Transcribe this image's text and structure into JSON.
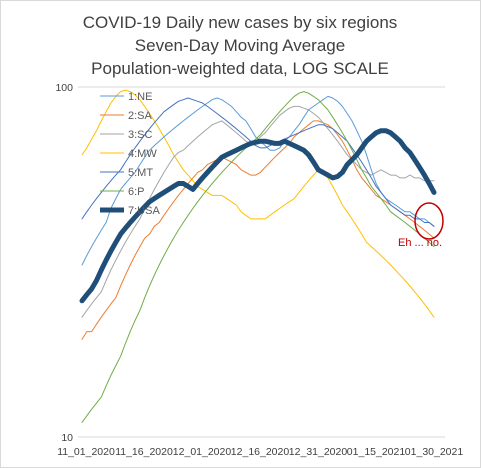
{
  "chart_data": {
    "type": "line",
    "title_lines": [
      "COVID-19 Daily new cases by six regions",
      "Seven-Day Moving Average",
      "Population-weighted data, LOG SCALE"
    ],
    "y_scale": "log",
    "ylim": [
      10,
      100
    ],
    "y_ticks": [
      "100",
      "10"
    ],
    "x_ticks": [
      "11_01_2020",
      "11_16_2020",
      "12_01_2020",
      "12_16_2020",
      "12_31_2020",
      "01_15_2021",
      "01_30_2021"
    ],
    "grid": "horizontal major only",
    "legend_position": "top-left",
    "annotation": "Eh ... no.",
    "series": [
      {
        "name": "1:NE",
        "color": "#5b9bd5",
        "values": [
          31,
          33,
          35,
          37,
          39,
          41,
          45,
          48,
          51,
          53,
          55,
          57,
          60,
          63,
          66,
          68,
          70,
          72,
          74,
          76,
          78,
          80,
          82,
          84,
          86,
          88,
          90,
          92,
          93,
          92,
          90,
          88,
          85,
          82,
          80,
          76,
          72,
          70,
          68,
          66,
          66,
          67,
          70,
          72,
          75,
          78,
          82,
          86,
          88,
          90,
          92,
          94,
          93,
          91,
          88,
          84,
          80,
          75,
          70,
          64,
          58,
          53,
          50,
          48,
          47,
          46,
          45,
          44,
          44,
          43,
          42,
          42,
          41,
          40
        ]
      },
      {
        "name": "2:SA",
        "color": "#ed7d31",
        "values": [
          19,
          20,
          20,
          21,
          22,
          23,
          24,
          25,
          27,
          29,
          31,
          33,
          35,
          37,
          38,
          40,
          41,
          43,
          45,
          47,
          49,
          51,
          53,
          55,
          57,
          58,
          60,
          61,
          62,
          63,
          62,
          61,
          60,
          58,
          57,
          56,
          56,
          57,
          59,
          61,
          63,
          65,
          67,
          69,
          72,
          74,
          76,
          78,
          80,
          80,
          79,
          78,
          76,
          73,
          70,
          66,
          62,
          58,
          55,
          53,
          51,
          49,
          48,
          47,
          46,
          45,
          44,
          43,
          42,
          41,
          40,
          39,
          38,
          37
        ]
      },
      {
        "name": "3:SC",
        "color": "#a5a5a5",
        "values": [
          22,
          23,
          24,
          25,
          26,
          28,
          30,
          32,
          34,
          36,
          38,
          40,
          42,
          45,
          48,
          51,
          54,
          57,
          60,
          63,
          65,
          66,
          68,
          70,
          72,
          74,
          76,
          78,
          79,
          80,
          78,
          76,
          74,
          72,
          70,
          69,
          70,
          72,
          74,
          77,
          80,
          83,
          85,
          87,
          88,
          88,
          87,
          86,
          84,
          82,
          79,
          76,
          73,
          70,
          67,
          64,
          62,
          60,
          58,
          57,
          56,
          57,
          58,
          57,
          56,
          56,
          55,
          55,
          56,
          55,
          55,
          54,
          54,
          54
        ]
      },
      {
        "name": "4:MW",
        "color": "#ffc000",
        "values": [
          64,
          67,
          71,
          75,
          80,
          85,
          90,
          94,
          97,
          98,
          97,
          95,
          92,
          88,
          84,
          80,
          76,
          72,
          68,
          64,
          61,
          58,
          56,
          54,
          52,
          51,
          50,
          49,
          49,
          49,
          48,
          47,
          46,
          44,
          43,
          42,
          42,
          42,
          42,
          43,
          44,
          45,
          46,
          47,
          48,
          50,
          52,
          54,
          56,
          58,
          57,
          55,
          52,
          49,
          46,
          44,
          42,
          40,
          38,
          36,
          35,
          34,
          33,
          32,
          31,
          30,
          29,
          28,
          27,
          26,
          25,
          24,
          23,
          22
        ]
      },
      {
        "name": "5:MT",
        "color": "#4472c4",
        "values": [
          42,
          44,
          46,
          48,
          50,
          52,
          54,
          56,
          58,
          61,
          64,
          67,
          70,
          73,
          76,
          79,
          82,
          85,
          87,
          89,
          91,
          92,
          93,
          92,
          91,
          90,
          88,
          86,
          84,
          82,
          80,
          78,
          76,
          74,
          72,
          70,
          68,
          67,
          67,
          68,
          69,
          70,
          71,
          72,
          73,
          74,
          75,
          76,
          77,
          78,
          78,
          77,
          76,
          74,
          72,
          70,
          67,
          64,
          61,
          58,
          55,
          52,
          50,
          48,
          46,
          45,
          44,
          43,
          43,
          42,
          42,
          41,
          41,
          40
        ]
      },
      {
        "name": "6:P",
        "color": "#70ad47",
        "values": [
          11,
          11.5,
          12,
          12.5,
          13,
          14,
          15,
          16,
          17,
          18.5,
          20,
          21.5,
          23,
          25,
          27,
          29,
          31,
          33,
          35,
          37,
          39,
          41,
          43,
          45,
          47,
          49,
          51,
          53,
          55,
          57,
          59,
          61,
          63,
          65,
          67,
          69,
          71,
          73,
          76,
          79,
          82,
          85,
          88,
          91,
          94,
          96,
          97,
          96,
          94,
          92,
          89,
          86,
          82,
          78,
          74,
          70,
          66,
          62,
          58,
          55,
          52,
          50,
          48,
          46,
          44,
          43,
          42,
          41,
          40,
          39,
          38,
          37,
          36,
          35
        ]
      },
      {
        "name": "7:USA",
        "color": "#1f4e79",
        "values": [
          24.5,
          25.5,
          26.5,
          28,
          30,
          32,
          34,
          36,
          38,
          39.5,
          41,
          42.5,
          44,
          45.5,
          47,
          48,
          49,
          50,
          51,
          52,
          53,
          53,
          52,
          51,
          53,
          55,
          57,
          59,
          61,
          63,
          64,
          65,
          66,
          67,
          68,
          69,
          69.5,
          70,
          70,
          69.5,
          69,
          69,
          70,
          69,
          68,
          67,
          66,
          64,
          61,
          58,
          57,
          56,
          55,
          55.5,
          57,
          60,
          62,
          64,
          67,
          70,
          72,
          74,
          75,
          75,
          74,
          72,
          70,
          67,
          65,
          62,
          59,
          56,
          53,
          50
        ]
      }
    ]
  }
}
